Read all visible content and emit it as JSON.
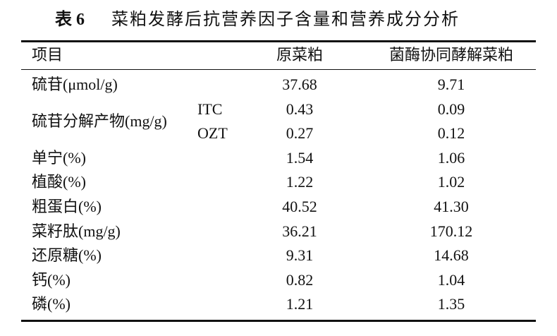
{
  "title": {
    "number": "表 6",
    "text": "菜粕发酵后抗营养因子含量和营养成分分析"
  },
  "table": {
    "header": [
      "项目",
      "原菜粕",
      "菌酶协同酵解菜粕"
    ],
    "rows": [
      {
        "label": "硫苷(μmol/g)",
        "values": [
          "37.68",
          "9.71"
        ]
      },
      {
        "label": "硫苷分解产物(mg/g)",
        "subrows": [
          {
            "label": "ITC",
            "values": [
              "0.43",
              "0.09"
            ]
          },
          {
            "label": "OZT",
            "values": [
              "0.27",
              "0.12"
            ]
          }
        ]
      },
      {
        "label": "单宁(%)",
        "values": [
          "1.54",
          "1.06"
        ]
      },
      {
        "label": "植酸(%)",
        "values": [
          "1.22",
          "1.02"
        ]
      },
      {
        "label": "粗蛋白(%)",
        "values": [
          "40.52",
          "41.30"
        ]
      },
      {
        "label": "菜籽肽(mg/g)",
        "values": [
          "36.21",
          "170.12"
        ]
      },
      {
        "label": "还原糖(%)",
        "values": [
          "9.31",
          "14.68"
        ]
      },
      {
        "label": "钙(%)",
        "values": [
          "0.82",
          "1.04"
        ]
      },
      {
        "label": "磷(%)",
        "values": [
          "1.21",
          "1.35"
        ]
      }
    ]
  }
}
